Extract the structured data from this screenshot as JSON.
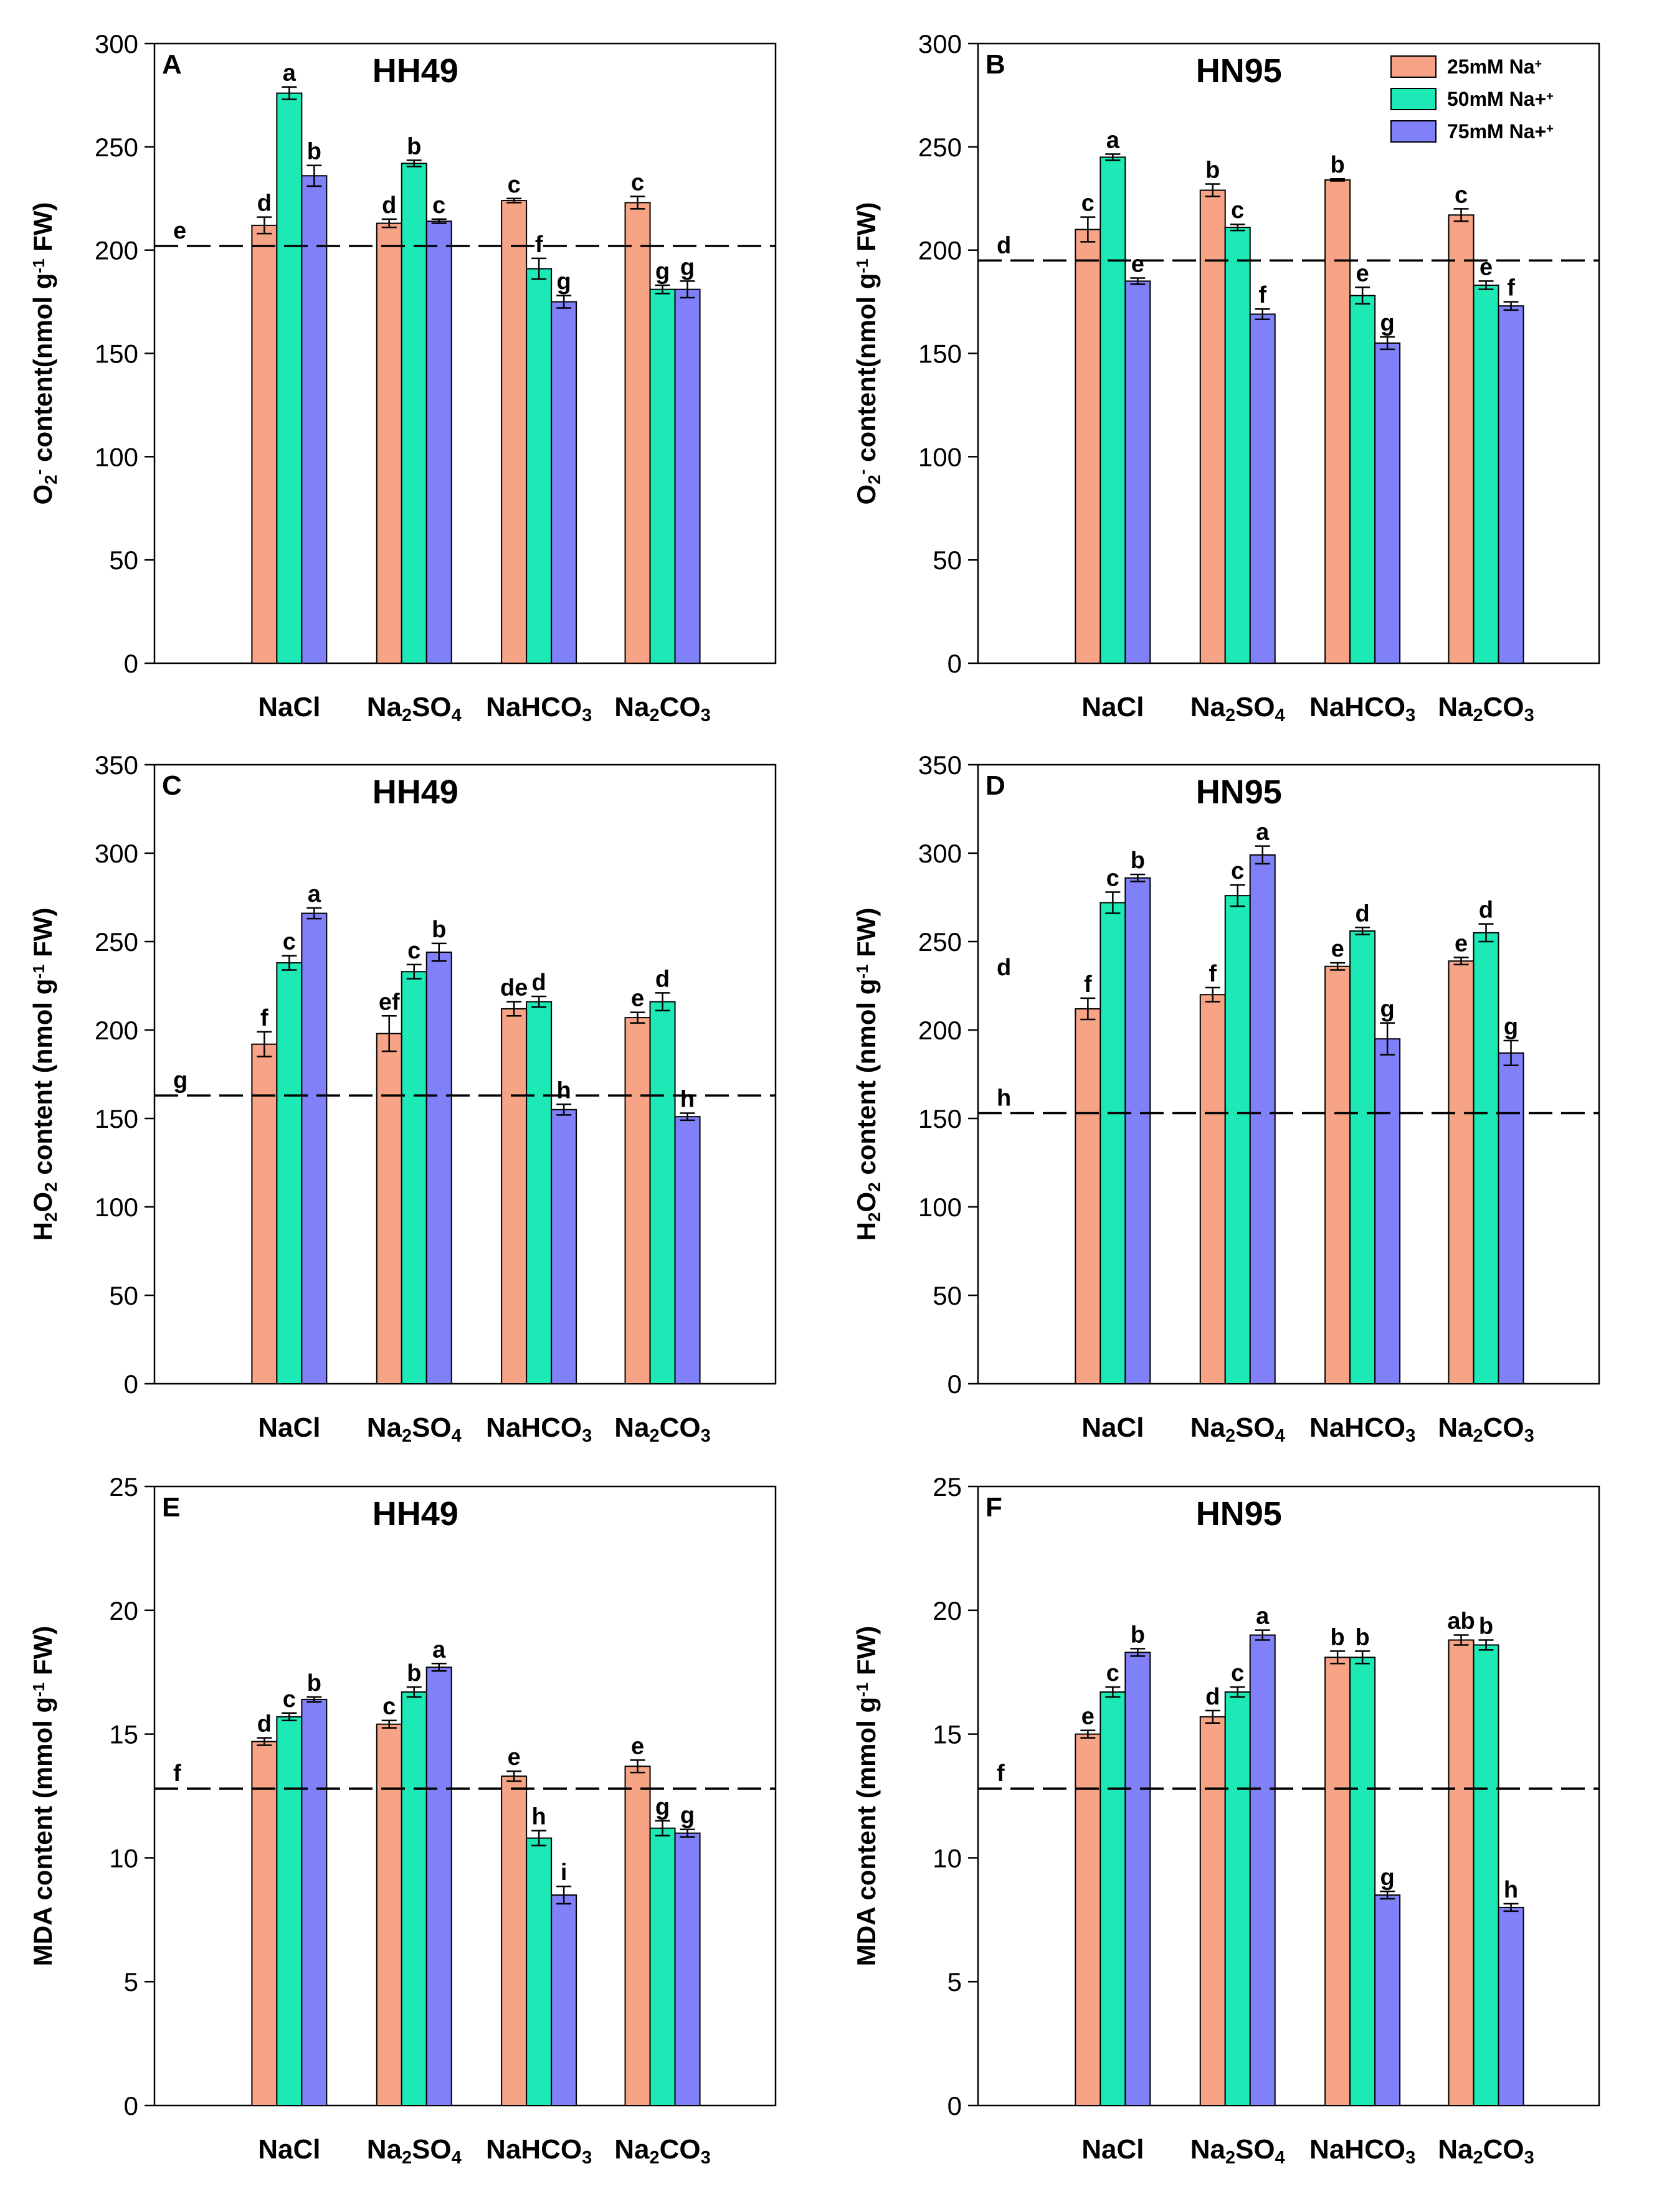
{
  "colors": {
    "series": [
      "#f7a386",
      "#1de9b6",
      "#8080f8"
    ],
    "axis": "#000000",
    "baseline": "#000000",
    "errorbar": "#000000"
  },
  "legend": {
    "entries": [
      {
        "label": "25mM Na",
        "sup": "+"
      },
      {
        "label": "50mM Na+",
        "sup": "+"
      },
      {
        "label": "75mM Na+",
        "sup": "+"
      }
    ]
  },
  "chart_data": [
    {
      "type": "bar",
      "panel": "A",
      "title": "HH49",
      "ylabel": {
        "parts": [
          [
            "O",
            ""
          ],
          [
            "2",
            "sub"
          ],
          [
            "-",
            "sup"
          ],
          [
            " content(nmol g",
            ""
          ],
          [
            "-1",
            "sup"
          ],
          [
            " FW)",
            ""
          ]
        ]
      },
      "ylim": [
        0,
        300
      ],
      "yticks": [
        0,
        50,
        100,
        150,
        200,
        250,
        300
      ],
      "categories": [
        [
          [
            "NaCl",
            ""
          ]
        ],
        [
          [
            "Na",
            ""
          ],
          [
            "2",
            "sub"
          ],
          [
            "SO",
            ""
          ],
          [
            "4",
            "sub"
          ]
        ],
        [
          [
            "NaHCO",
            ""
          ],
          [
            "3",
            "sub"
          ]
        ],
        [
          [
            "Na",
            ""
          ],
          [
            "2",
            "sub"
          ],
          [
            "CO",
            ""
          ],
          [
            "3",
            "sub"
          ]
        ]
      ],
      "series": [
        {
          "name": "25mM Na+",
          "values": [
            212,
            213,
            224,
            223
          ],
          "errors": [
            4,
            2,
            1,
            3
          ],
          "letters": [
            "d",
            "d",
            "c",
            "c"
          ]
        },
        {
          "name": "50mM Na+",
          "values": [
            276,
            242,
            191,
            181
          ],
          "errors": [
            3,
            1.5,
            5,
            2
          ],
          "letters": [
            "a",
            "b",
            "f",
            "g"
          ]
        },
        {
          "name": "75mM Na+",
          "values": [
            236,
            214,
            175,
            181
          ],
          "errors": [
            5,
            1,
            3,
            4
          ],
          "letters": [
            "b",
            "c",
            "g",
            "g"
          ]
        }
      ],
      "control": {
        "value": 202,
        "letter": "e"
      },
      "show_legend": false
    },
    {
      "type": "bar",
      "panel": "B",
      "title": "HN95",
      "ylabel": {
        "parts": [
          [
            "O",
            ""
          ],
          [
            "2",
            "sub"
          ],
          [
            "-",
            "sup"
          ],
          [
            " content(nmol g",
            ""
          ],
          [
            "-1",
            "sup"
          ],
          [
            " FW)",
            ""
          ]
        ]
      },
      "ylim": [
        0,
        300
      ],
      "yticks": [
        0,
        50,
        100,
        150,
        200,
        250,
        300
      ],
      "categories": [
        [
          [
            "NaCl",
            ""
          ]
        ],
        [
          [
            "Na",
            ""
          ],
          [
            "2",
            "sub"
          ],
          [
            "SO",
            ""
          ],
          [
            "4",
            "sub"
          ]
        ],
        [
          [
            "NaHCO",
            ""
          ],
          [
            "3",
            "sub"
          ]
        ],
        [
          [
            "Na",
            ""
          ],
          [
            "2",
            "sub"
          ],
          [
            "CO",
            ""
          ],
          [
            "3",
            "sub"
          ]
        ]
      ],
      "series": [
        {
          "name": "25mM Na+",
          "values": [
            210,
            229,
            234,
            217
          ],
          "errors": [
            6,
            3,
            0.5,
            3
          ],
          "letters": [
            "c",
            "b",
            "b",
            "c"
          ]
        },
        {
          "name": "50mM Na+",
          "values": [
            245,
            211,
            178,
            183
          ],
          "errors": [
            1.5,
            1.5,
            4,
            2
          ],
          "letters": [
            "a",
            "c",
            "e",
            "e"
          ]
        },
        {
          "name": "75mM Na+",
          "values": [
            185,
            169,
            155,
            173
          ],
          "errors": [
            1.5,
            2.5,
            3,
            2
          ],
          "letters": [
            "e",
            "f",
            "g",
            "f"
          ]
        }
      ],
      "control": {
        "value": 195,
        "letter": "d"
      },
      "show_legend": true
    },
    {
      "type": "bar",
      "panel": "C",
      "title": "HH49",
      "ylabel": {
        "parts": [
          [
            "H",
            ""
          ],
          [
            "2",
            "sub"
          ],
          [
            "O",
            ""
          ],
          [
            "2",
            "sub"
          ],
          [
            " content (nmol g",
            ""
          ],
          [
            "-1",
            "sup"
          ],
          [
            " FW)",
            ""
          ]
        ]
      },
      "ylim": [
        0,
        350
      ],
      "yticks": [
        0,
        50,
        100,
        150,
        200,
        250,
        300,
        350
      ],
      "categories": [
        [
          [
            "NaCl",
            ""
          ]
        ],
        [
          [
            "Na",
            ""
          ],
          [
            "2",
            "sub"
          ],
          [
            "SO",
            ""
          ],
          [
            "4",
            "sub"
          ]
        ],
        [
          [
            "NaHCO",
            ""
          ],
          [
            "3",
            "sub"
          ]
        ],
        [
          [
            "Na",
            ""
          ],
          [
            "2",
            "sub"
          ],
          [
            "CO",
            ""
          ],
          [
            "3",
            "sub"
          ]
        ]
      ],
      "series": [
        {
          "name": "25mM Na+",
          "values": [
            192,
            198,
            212,
            207
          ],
          "errors": [
            7,
            10,
            4,
            3
          ],
          "letters": [
            "f",
            "ef",
            "de",
            "e"
          ]
        },
        {
          "name": "50mM Na+",
          "values": [
            238,
            233,
            216,
            216
          ],
          "errors": [
            4,
            4,
            3,
            5
          ],
          "letters": [
            "c",
            "c",
            "d",
            "d"
          ]
        },
        {
          "name": "75mM Na+",
          "values": [
            266,
            244,
            155,
            151
          ],
          "errors": [
            3,
            5,
            3,
            2
          ],
          "letters": [
            "a",
            "b",
            "h",
            "h"
          ]
        }
      ],
      "control": {
        "value": 163,
        "letter": "g"
      },
      "show_legend": false
    },
    {
      "type": "bar",
      "panel": "D",
      "title": "HN95",
      "ylabel": {
        "parts": [
          [
            "H",
            ""
          ],
          [
            "2",
            "sub"
          ],
          [
            "O",
            ""
          ],
          [
            "2",
            "sub"
          ],
          [
            " content (nmol g",
            ""
          ],
          [
            "-1",
            "sup"
          ],
          [
            " FW)",
            ""
          ]
        ]
      },
      "ylim": [
        0,
        350
      ],
      "yticks": [
        0,
        50,
        100,
        150,
        200,
        250,
        300,
        350
      ],
      "categories": [
        [
          [
            "NaCl",
            ""
          ]
        ],
        [
          [
            "Na",
            ""
          ],
          [
            "2",
            "sub"
          ],
          [
            "SO",
            ""
          ],
          [
            "4",
            "sub"
          ]
        ],
        [
          [
            "NaHCO",
            ""
          ],
          [
            "3",
            "sub"
          ]
        ],
        [
          [
            "Na",
            ""
          ],
          [
            "2",
            "sub"
          ],
          [
            "CO",
            ""
          ],
          [
            "3",
            "sub"
          ]
        ]
      ],
      "series": [
        {
          "name": "25mM Na+",
          "values": [
            212,
            220,
            236,
            239
          ],
          "errors": [
            6,
            4,
            2,
            2
          ],
          "letters": [
            "f",
            "f",
            "e",
            "e"
          ]
        },
        {
          "name": "50mM Na+",
          "values": [
            272,
            276,
            256,
            255
          ],
          "errors": [
            6,
            6,
            2,
            5
          ],
          "letters": [
            "c",
            "c",
            "d",
            "d"
          ]
        },
        {
          "name": "75mM Na+",
          "values": [
            286,
            299,
            195,
            187
          ],
          "errors": [
            2,
            5,
            9,
            7
          ],
          "letters": [
            "b",
            "a",
            "g",
            "g"
          ]
        }
      ],
      "control": {
        "value": 153,
        "letter": "h"
      },
      "extra_labels": [
        {
          "text": "d",
          "value": 236
        }
      ],
      "show_legend": false
    },
    {
      "type": "bar",
      "panel": "E",
      "title": "HH49",
      "ylabel": {
        "parts": [
          [
            "MDA content (mmol g",
            ""
          ],
          [
            "-1",
            "sup"
          ],
          [
            " FW)",
            ""
          ]
        ]
      },
      "ylim": [
        0,
        25
      ],
      "yticks": [
        0,
        5,
        10,
        15,
        20,
        25
      ],
      "categories": [
        [
          [
            "NaCl",
            ""
          ]
        ],
        [
          [
            "Na",
            ""
          ],
          [
            "2",
            "sub"
          ],
          [
            "SO",
            ""
          ],
          [
            "4",
            "sub"
          ]
        ],
        [
          [
            "NaHCO",
            ""
          ],
          [
            "3",
            "sub"
          ]
        ],
        [
          [
            "Na",
            ""
          ],
          [
            "2",
            "sub"
          ],
          [
            "CO",
            ""
          ],
          [
            "3",
            "sub"
          ]
        ]
      ],
      "series": [
        {
          "name": "25mM Na+",
          "values": [
            14.7,
            15.4,
            13.3,
            13.7
          ],
          "errors": [
            0.15,
            0.15,
            0.2,
            0.25
          ],
          "letters": [
            "d",
            "c",
            "e",
            "e"
          ]
        },
        {
          "name": "50mM Na+",
          "values": [
            15.7,
            16.7,
            10.8,
            11.2
          ],
          "errors": [
            0.15,
            0.2,
            0.3,
            0.3
          ],
          "letters": [
            "c",
            "b",
            "h",
            "g"
          ]
        },
        {
          "name": "75mM Na+",
          "values": [
            16.4,
            17.7,
            8.5,
            11.0
          ],
          "errors": [
            0.1,
            0.15,
            0.35,
            0.15
          ],
          "letters": [
            "b",
            "a",
            "i",
            "g"
          ]
        }
      ],
      "control": {
        "value": 12.8,
        "letter": "f"
      },
      "show_legend": false
    },
    {
      "type": "bar",
      "panel": "F",
      "title": "HN95",
      "ylabel": {
        "parts": [
          [
            "MDA content (mmol g",
            ""
          ],
          [
            "-1",
            "sup"
          ],
          [
            " FW)",
            ""
          ]
        ]
      },
      "ylim": [
        0,
        25
      ],
      "yticks": [
        0,
        5,
        10,
        15,
        20,
        25
      ],
      "categories": [
        [
          [
            "NaCl",
            ""
          ]
        ],
        [
          [
            "Na",
            ""
          ],
          [
            "2",
            "sub"
          ],
          [
            "SO",
            ""
          ],
          [
            "4",
            "sub"
          ]
        ],
        [
          [
            "NaHCO",
            ""
          ],
          [
            "3",
            "sub"
          ]
        ],
        [
          [
            "Na",
            ""
          ],
          [
            "2",
            "sub"
          ],
          [
            "CO",
            ""
          ],
          [
            "3",
            "sub"
          ]
        ]
      ],
      "series": [
        {
          "name": "25mM Na+",
          "values": [
            15.0,
            15.7,
            18.1,
            18.8
          ],
          "errors": [
            0.15,
            0.25,
            0.25,
            0.2
          ],
          "letters": [
            "e",
            "d",
            "b",
            "ab"
          ]
        },
        {
          "name": "50mM Na+",
          "values": [
            16.7,
            16.7,
            18.1,
            18.6
          ],
          "errors": [
            0.2,
            0.2,
            0.25,
            0.2
          ],
          "letters": [
            "c",
            "c",
            "b",
            "b"
          ]
        },
        {
          "name": "75mM Na+",
          "values": [
            18.3,
            19.0,
            8.5,
            8.0
          ],
          "errors": [
            0.15,
            0.2,
            0.15,
            0.15
          ],
          "letters": [
            "b",
            "a",
            "g",
            "h"
          ]
        }
      ],
      "control": {
        "value": 12.8,
        "letter": "f"
      },
      "show_legend": false
    }
  ]
}
